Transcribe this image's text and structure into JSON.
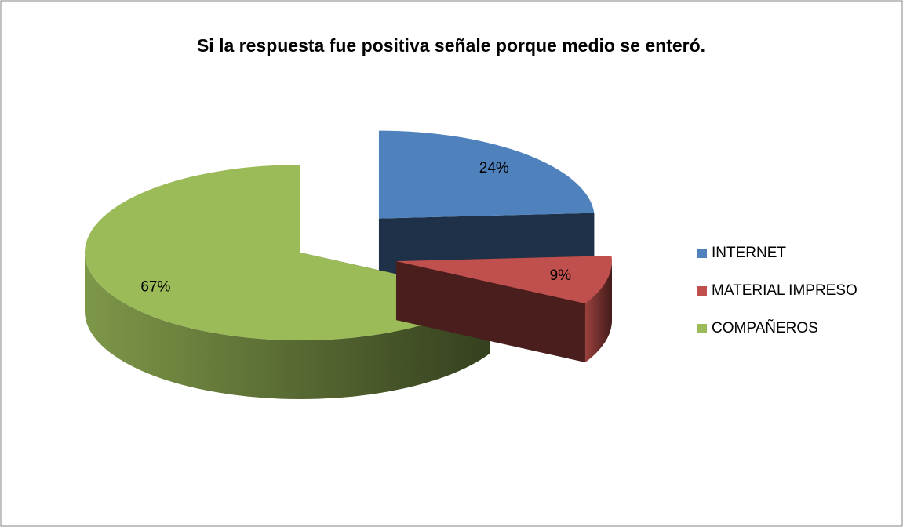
{
  "chart_data": {
    "type": "pie",
    "title": "Si la respuesta fue positiva señale porque medio se enteró.",
    "categories": [
      "INTERNET",
      "MATERIAL IMPRESO",
      "COMPAÑEROS"
    ],
    "values": [
      24,
      9,
      67
    ],
    "value_labels": [
      "24%",
      "9%",
      "67%"
    ],
    "colors": [
      "#4f81bd",
      "#c0504d",
      "#9bbb59"
    ],
    "legend": "right"
  }
}
